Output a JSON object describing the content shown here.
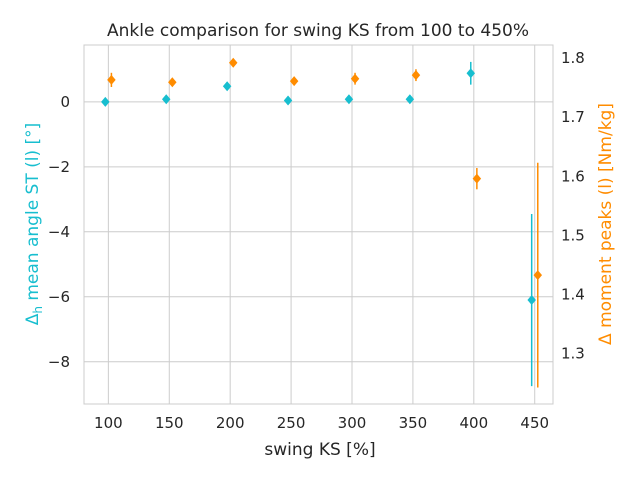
{
  "chart_data": {
    "type": "scatter",
    "title": "Ankle comparison for swing KS from 100 to 450%",
    "xlabel": "swing KS [%]",
    "ylabel_left_prefix": "Δ",
    "ylabel_left_sub": "h",
    "ylabel_left_suffix": " mean angle ST (l) [°]",
    "ylabel_right": "Δ moment peaks (l) [Nm/kg]",
    "xlim": [
      80,
      465
    ],
    "ylim_left": [
      -9.3,
      1.75
    ],
    "ylim_right": [
      1.215,
      1.822
    ],
    "xticks": [
      100,
      150,
      200,
      250,
      300,
      350,
      400,
      450
    ],
    "yticks_left": [
      0,
      -2,
      -4,
      -6,
      -8
    ],
    "ytick_labels_left": [
      "0",
      "−2",
      "−4",
      "−6",
      "−8"
    ],
    "yticks_right": [
      1.3,
      1.4,
      1.5,
      1.6,
      1.7,
      1.8
    ],
    "ytick_labels_right": [
      "1.3",
      "1.4",
      "1.5",
      "1.6",
      "1.7",
      "1.8"
    ],
    "grid": true,
    "colors": {
      "left": "#17becf",
      "right": "#ff8c00"
    },
    "series": [
      {
        "axis": "left",
        "marker": "diamond",
        "x": [
          97.5,
          147.5,
          197.5,
          247.5,
          297.5,
          347.5,
          397.5,
          447.5
        ],
        "y": [
          0.0,
          0.08,
          0.48,
          0.04,
          0.08,
          0.08,
          0.88,
          -6.1
        ],
        "err": [
          0.0,
          0.0,
          0.0,
          0.0,
          0.0,
          0.0,
          0.35,
          2.65
        ]
      },
      {
        "axis": "right",
        "marker": "diamond",
        "x": [
          102.5,
          152.5,
          202.5,
          252.5,
          302.5,
          352.5,
          402.5,
          452.5
        ],
        "y": [
          1.763,
          1.759,
          1.792,
          1.761,
          1.765,
          1.771,
          1.596,
          1.433
        ],
        "err": [
          0.012,
          0.0,
          0.0,
          0.0,
          0.01,
          0.01,
          0.018,
          0.19
        ]
      }
    ]
  }
}
